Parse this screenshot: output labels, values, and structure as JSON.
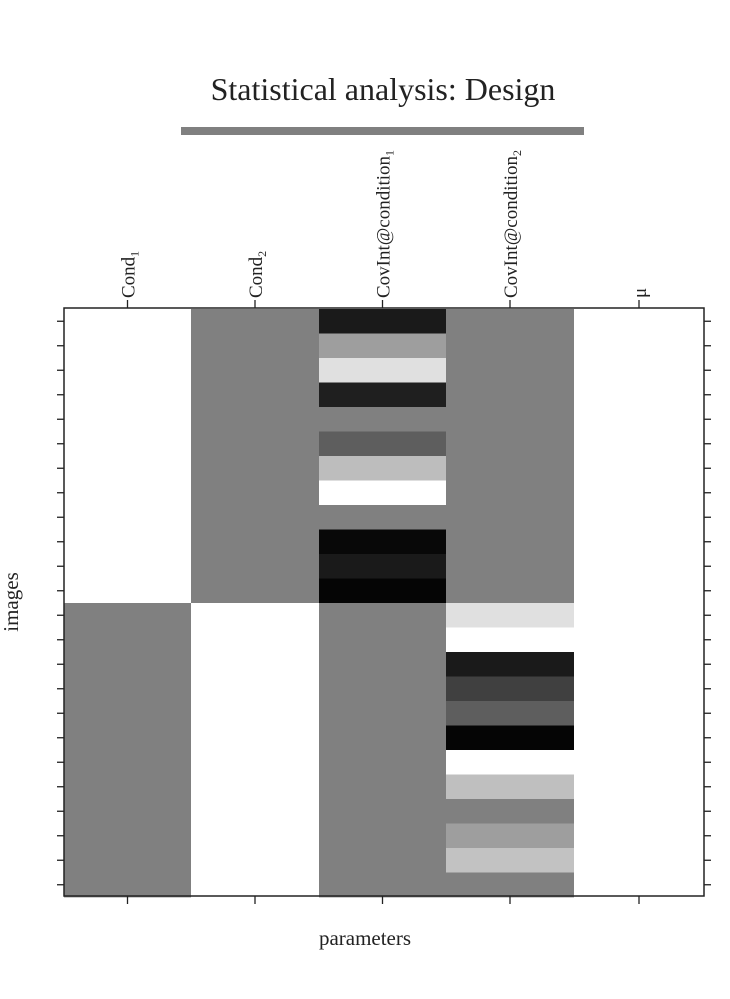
{
  "chart_data": {
    "type": "heatmap",
    "title": "Statistical analysis: Design",
    "xlabel": "parameters",
    "ylabel": "images",
    "columns": [
      {
        "base": "Cond",
        "sub": "1"
      },
      {
        "base": "Cond",
        "sub": "2"
      },
      {
        "base": "CovInt@condition",
        "sub": "1"
      },
      {
        "base": "CovInt@condition",
        "sub": "2"
      },
      {
        "base": "μ",
        "sub": ""
      }
    ],
    "n_rows": 24,
    "value_range": [
      0,
      1
    ],
    "colormap": "gray (0 = black, 1 = white)",
    "matrix": [
      [
        1,
        0.5,
        0.1,
        0.5,
        1
      ],
      [
        1,
        0.5,
        0.62,
        0.5,
        1
      ],
      [
        1,
        0.5,
        0.88,
        0.5,
        1
      ],
      [
        1,
        0.5,
        0.12,
        0.5,
        1
      ],
      [
        1,
        0.5,
        0.5,
        0.5,
        1
      ],
      [
        1,
        0.5,
        0.37,
        0.5,
        1
      ],
      [
        1,
        0.5,
        0.74,
        0.5,
        1
      ],
      [
        1,
        0.5,
        1.0,
        0.5,
        1
      ],
      [
        1,
        0.5,
        0.5,
        0.5,
        1
      ],
      [
        1,
        0.5,
        0.03,
        0.5,
        1
      ],
      [
        1,
        0.5,
        0.1,
        0.5,
        1
      ],
      [
        1,
        0.5,
        0.02,
        0.5,
        1
      ],
      [
        0.5,
        1,
        0.5,
        0.88,
        1
      ],
      [
        0.5,
        1,
        0.5,
        1.0,
        1
      ],
      [
        0.5,
        1,
        0.5,
        0.1,
        1
      ],
      [
        0.5,
        1,
        0.5,
        0.25,
        1
      ],
      [
        0.5,
        1,
        0.5,
        0.37,
        1
      ],
      [
        0.5,
        1,
        0.5,
        0.02,
        1
      ],
      [
        0.5,
        1,
        0.5,
        1.0,
        1
      ],
      [
        0.5,
        1,
        0.5,
        0.75,
        1
      ],
      [
        0.5,
        1,
        0.5,
        0.5,
        1
      ],
      [
        0.5,
        1,
        0.5,
        0.62,
        1
      ],
      [
        0.5,
        1,
        0.5,
        0.76,
        1
      ],
      [
        0.5,
        1,
        0.5,
        0.5,
        1
      ]
    ]
  },
  "style": {
    "title_bar_color": "#808080",
    "axis_color": "#222222"
  }
}
